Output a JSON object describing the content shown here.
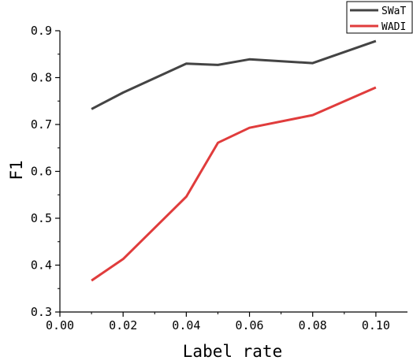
{
  "chart_data": {
    "type": "line",
    "xlabel": "Label rate",
    "ylabel": "F1",
    "xlim": [
      0.0,
      0.11
    ],
    "ylim": [
      0.3,
      0.9
    ],
    "x_ticks": [
      "0.00",
      "0.02",
      "0.04",
      "0.06",
      "0.08",
      "0.10"
    ],
    "y_ticks": [
      "0.3",
      "0.4",
      "0.5",
      "0.6",
      "0.7",
      "0.8",
      "0.9"
    ],
    "grid": false,
    "legend_position": "top-right",
    "series": [
      {
        "name": "SWaT",
        "color": "#444444",
        "x": [
          0.01,
          0.02,
          0.04,
          0.05,
          0.06,
          0.08,
          0.1
        ],
        "y": [
          0.733,
          0.768,
          0.83,
          0.827,
          0.839,
          0.831,
          0.878
        ]
      },
      {
        "name": "WADI",
        "color": "#e03c3c",
        "x": [
          0.01,
          0.02,
          0.04,
          0.05,
          0.06,
          0.08,
          0.1
        ],
        "y": [
          0.367,
          0.413,
          0.546,
          0.661,
          0.693,
          0.72,
          0.779
        ]
      }
    ]
  }
}
